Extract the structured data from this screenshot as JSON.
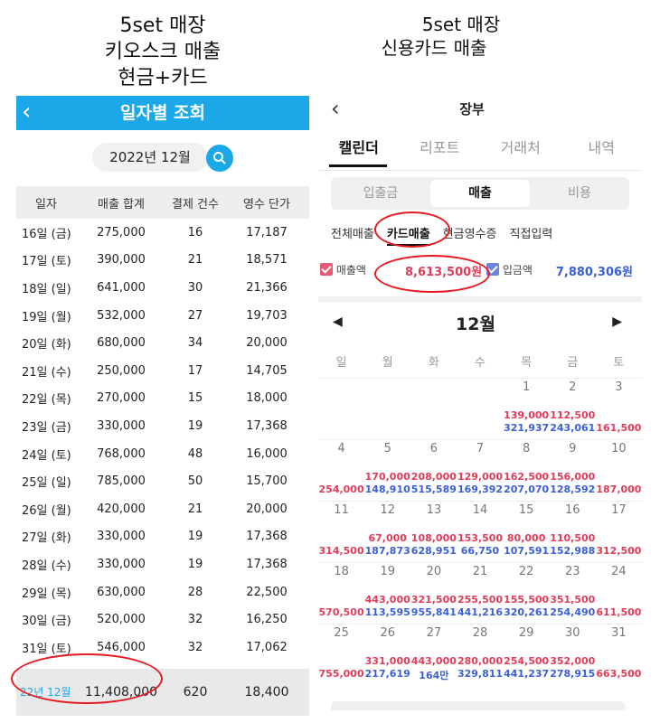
{
  "captions": {
    "left": [
      "5set 매장",
      "키오스크 매출",
      "현금+카드"
    ],
    "right": [
      "5set 매장",
      "신용카드 매출"
    ]
  },
  "left_panel": {
    "title": "일자별 조회",
    "date": "2022년 12월",
    "columns": [
      "일자",
      "매출 합계",
      "결제 건수",
      "영수 단가"
    ],
    "rows": [
      [
        "16일 (금)",
        "275,000",
        "16",
        "17,187"
      ],
      [
        "17일 (토)",
        "390,000",
        "21",
        "18,571"
      ],
      [
        "18일 (일)",
        "641,000",
        "30",
        "21,366"
      ],
      [
        "19일 (월)",
        "532,000",
        "27",
        "19,703"
      ],
      [
        "20일 (화)",
        "680,000",
        "34",
        "20,000"
      ],
      [
        "21일 (수)",
        "250,000",
        "17",
        "14,705"
      ],
      [
        "22일 (목)",
        "270,000",
        "15",
        "18,000"
      ],
      [
        "23일 (금)",
        "330,000",
        "19",
        "17,368"
      ],
      [
        "24일 (토)",
        "768,000",
        "48",
        "16,000"
      ],
      [
        "25일 (일)",
        "785,000",
        "50",
        "15,700"
      ],
      [
        "26일 (월)",
        "420,000",
        "21",
        "20,000"
      ],
      [
        "27일 (화)",
        "330,000",
        "19",
        "17,368"
      ],
      [
        "28일 (수)",
        "330,000",
        "19",
        "17,368"
      ],
      [
        "29일 (목)",
        "630,000",
        "28",
        "22,500"
      ],
      [
        "30일 (금)",
        "520,000",
        "32",
        "16,250"
      ],
      [
        "31일 (토)",
        "546,000",
        "32",
        "17,062"
      ]
    ],
    "total": [
      "22년 12월",
      "11,408,000",
      "620",
      "18,400"
    ]
  },
  "right_panel": {
    "title": "장부",
    "tabs": [
      "캘린더",
      "리포트",
      "거래처",
      "내역"
    ],
    "segments": [
      "입출금",
      "매출",
      "비용"
    ],
    "subtabs": [
      "전체매출",
      "카드매출",
      "현금영수증",
      "직접입력"
    ],
    "sales_label": "매출액",
    "sales_value": "8,613,500원",
    "deposit_label": "입금액",
    "deposit_value": "7,880,306원",
    "month": "12월",
    "weekdays": [
      "일",
      "월",
      "화",
      "수",
      "목",
      "금",
      "토"
    ],
    "colors": {
      "sales": "#e23c59",
      "deposit": "#3a5fd6",
      "accent": "#1ba8e8"
    },
    "weeks": [
      [
        {
          "n": "",
          "s": "",
          "d": ""
        },
        {
          "n": "",
          "s": "",
          "d": ""
        },
        {
          "n": "",
          "s": "",
          "d": ""
        },
        {
          "n": "",
          "s": "",
          "d": ""
        },
        {
          "n": "1",
          "s": "139,000",
          "d": "321,937"
        },
        {
          "n": "2",
          "s": "112,500",
          "d": "243,061"
        },
        {
          "n": "3",
          "s": "161,500",
          "d": ""
        }
      ],
      [
        {
          "n": "4",
          "s": "254,000",
          "d": ""
        },
        {
          "n": "5",
          "s": "170,000",
          "d": "148,910"
        },
        {
          "n": "6",
          "s": "208,000",
          "d": "515,589"
        },
        {
          "n": "7",
          "s": "129,000",
          "d": "169,392"
        },
        {
          "n": "8",
          "s": "162,500",
          "d": "207,070"
        },
        {
          "n": "9",
          "s": "156,000",
          "d": "128,592"
        },
        {
          "n": "10",
          "s": "187,000",
          "d": ""
        }
      ],
      [
        {
          "n": "11",
          "s": "314,500",
          "d": ""
        },
        {
          "n": "12",
          "s": "67,000",
          "d": "187,873"
        },
        {
          "n": "13",
          "s": "108,000",
          "d": "628,951"
        },
        {
          "n": "14",
          "s": "153,500",
          "d": "66,750"
        },
        {
          "n": "15",
          "s": "80,000",
          "d": "107,591"
        },
        {
          "n": "16",
          "s": "110,500",
          "d": "152,988"
        },
        {
          "n": "17",
          "s": "312,500",
          "d": ""
        }
      ],
      [
        {
          "n": "18",
          "s": "570,500",
          "d": ""
        },
        {
          "n": "19",
          "s": "443,000",
          "d": "113,595"
        },
        {
          "n": "20",
          "s": "321,500",
          "d": "955,841"
        },
        {
          "n": "21",
          "s": "255,500",
          "d": "441,216"
        },
        {
          "n": "22",
          "s": "155,500",
          "d": "320,261"
        },
        {
          "n": "23",
          "s": "351,500",
          "d": "254,490"
        },
        {
          "n": "24",
          "s": "611,500",
          "d": ""
        }
      ],
      [
        {
          "n": "25",
          "s": "755,000",
          "d": ""
        },
        {
          "n": "26",
          "s": "331,000",
          "d": "217,619"
        },
        {
          "n": "27",
          "s": "443,000",
          "d": "164만"
        },
        {
          "n": "28",
          "s": "280,000",
          "d": "329,811"
        },
        {
          "n": "29",
          "s": "254,500",
          "d": "441,237"
        },
        {
          "n": "30",
          "s": "352,000",
          "d": "278,915"
        },
        {
          "n": "31",
          "s": "663,500",
          "d": ""
        }
      ]
    ]
  }
}
